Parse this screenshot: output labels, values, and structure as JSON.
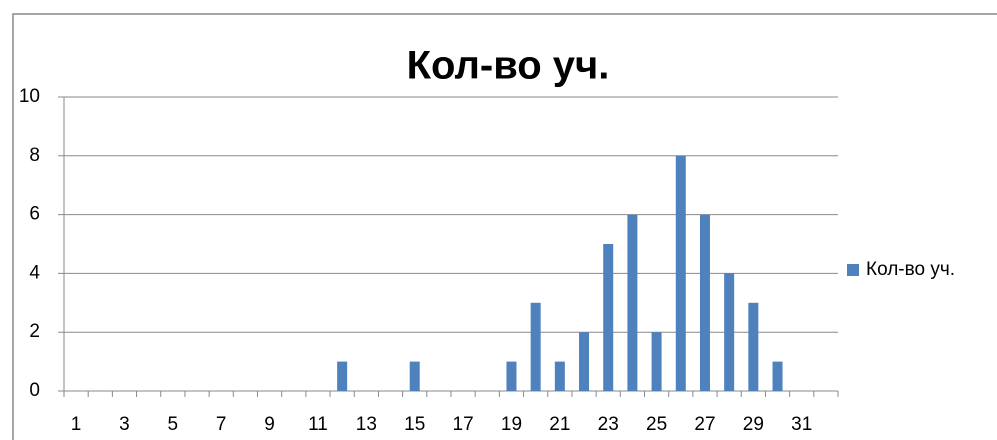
{
  "chart_data": {
    "type": "bar",
    "title": "Кол-во уч.",
    "categories": [
      1,
      null,
      3,
      null,
      5,
      null,
      7,
      null,
      9,
      null,
      11,
      null,
      13,
      null,
      15,
      null,
      17,
      null,
      19,
      null,
      21,
      null,
      23,
      null,
      25,
      null,
      27,
      null,
      29,
      null,
      31,
      null
    ],
    "series": [
      {
        "name": "Кол-во уч.",
        "color": "#4f81bd",
        "values": [
          0,
          0,
          0,
          0,
          0,
          0,
          0,
          0,
          0,
          0,
          0,
          1,
          0,
          0,
          1,
          0,
          0,
          0,
          1,
          3,
          1,
          2,
          5,
          6,
          2,
          8,
          6,
          4,
          3,
          1,
          0,
          0
        ]
      }
    ],
    "ylim": [
      0,
      10
    ],
    "yticks": [
      0,
      2,
      4,
      6,
      8,
      10
    ],
    "grid": true,
    "legend": "right"
  }
}
